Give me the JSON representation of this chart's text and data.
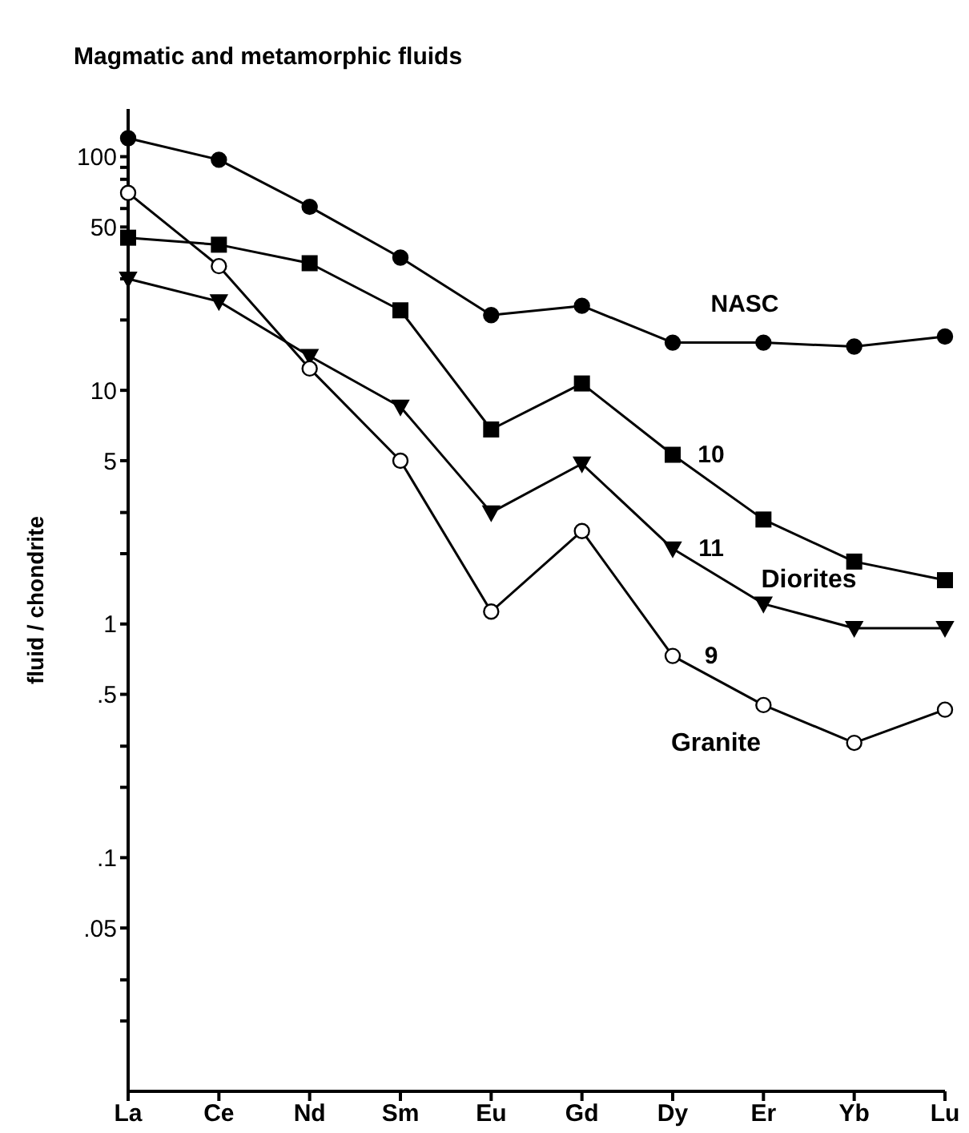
{
  "chart_data": {
    "type": "line",
    "title": "Magmatic and metamorphic fluids",
    "ylabel": "fluid / chondrite",
    "categories": [
      "La",
      "Ce",
      "Nd",
      "Sm",
      "Eu",
      "Gd",
      "Dy",
      "Er",
      "Yb",
      "Lu"
    ],
    "log": "y",
    "ylim": [
      0.01,
      160
    ],
    "yticks": [
      {
        "value": 0.02,
        "label": null
      },
      {
        "value": 0.03,
        "label": null
      },
      {
        "value": 0.05,
        "label": ".05"
      },
      {
        "value": 0.1,
        "label": ".1"
      },
      {
        "value": 0.2,
        "label": null
      },
      {
        "value": 0.3,
        "label": null
      },
      {
        "value": 0.5,
        "label": ".5"
      },
      {
        "value": 1,
        "label": "1"
      },
      {
        "value": 2,
        "label": null
      },
      {
        "value": 3,
        "label": null
      },
      {
        "value": 5,
        "label": "5"
      },
      {
        "value": 10,
        "label": "10"
      },
      {
        "value": 20,
        "label": null
      },
      {
        "value": 30,
        "label": null
      },
      {
        "value": 50,
        "label": "50"
      },
      {
        "value": 60,
        "label": null
      },
      {
        "value": 70,
        "label": null
      },
      {
        "value": 80,
        "label": null
      },
      {
        "value": 90,
        "label": null
      },
      {
        "value": 100,
        "label": "100"
      }
    ],
    "grid": false,
    "line_style": "solid",
    "series": [
      {
        "name": "NASC",
        "color": "#000000",
        "marker": "circle",
        "values": [
          120,
          97,
          61,
          37,
          21,
          23,
          16,
          16,
          15.4,
          17
        ]
      },
      {
        "name": "10",
        "color": "#000000",
        "marker": "square",
        "values": [
          45,
          42,
          35,
          22,
          6.8,
          10.7,
          5.3,
          2.8,
          1.85,
          1.54
        ]
      },
      {
        "name": "11",
        "color": "#000000",
        "marker": "triangle",
        "values": [
          30,
          24,
          14,
          8.5,
          3.0,
          4.85,
          2.1,
          1.22,
          0.96,
          0.96
        ]
      },
      {
        "name": "9",
        "color": "#000000",
        "marker": "circle",
        "values": [
          70,
          34,
          12.4,
          5.0,
          1.13,
          2.5,
          0.73,
          0.45,
          0.31,
          0.43
        ]
      }
    ],
    "annotations": [
      "Diorites",
      "Granite"
    ]
  }
}
